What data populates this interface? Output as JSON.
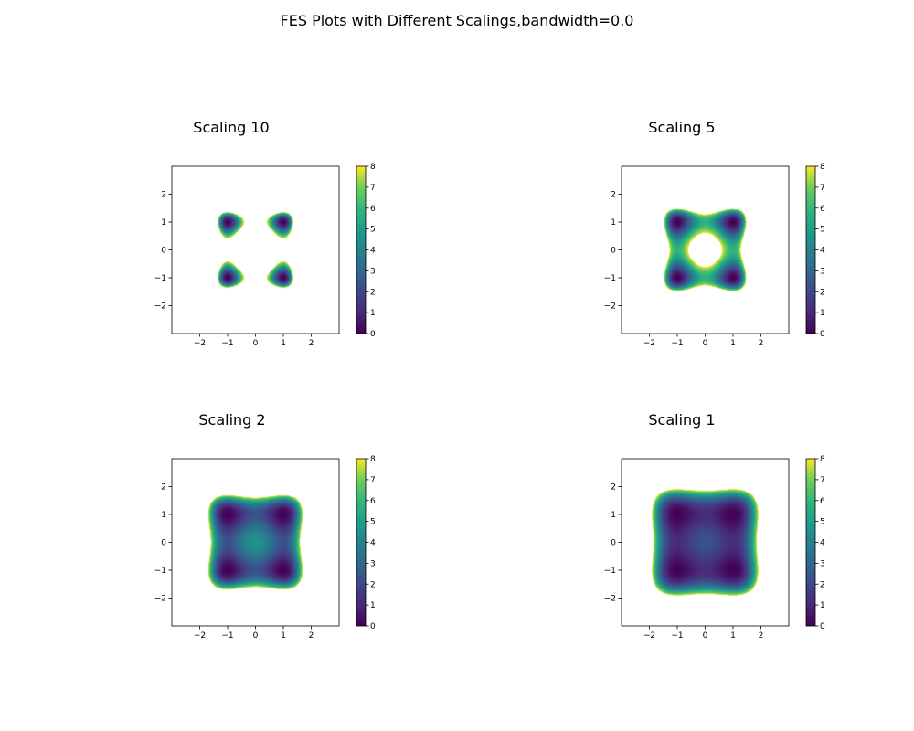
{
  "figure": {
    "title": "FES Plots with Different Scalings,bandwidth=0.0"
  },
  "chart_data": [
    {
      "type": "heatmap",
      "title": "Scaling 10",
      "scaling": 10,
      "colormap": "viridis",
      "xlim": [
        -3,
        3
      ],
      "ylim": [
        -3,
        3
      ],
      "xticks": [
        "-2",
        "-1",
        "0",
        "1",
        "2"
      ],
      "yticks": [
        "-2",
        "-1",
        "0",
        "1",
        "2"
      ],
      "colorbar": {
        "min": 0,
        "max": 8,
        "ticks": [
          "0",
          "1",
          "2",
          "3",
          "4",
          "5",
          "6",
          "7",
          "8"
        ]
      },
      "minima": [
        [
          -1,
          1
        ],
        [
          1,
          1
        ],
        [
          -1,
          -1
        ],
        [
          1,
          -1
        ]
      ],
      "grid": false
    },
    {
      "type": "heatmap",
      "title": "Scaling 5",
      "scaling": 5,
      "colormap": "viridis",
      "xlim": [
        -3,
        3
      ],
      "ylim": [
        -3,
        3
      ],
      "xticks": [
        "-2",
        "-1",
        "0",
        "1",
        "2"
      ],
      "yticks": [
        "-2",
        "-1",
        "0",
        "1",
        "2"
      ],
      "colorbar": {
        "min": 0,
        "max": 8,
        "ticks": [
          "0",
          "1",
          "2",
          "3",
          "4",
          "5",
          "6",
          "7",
          "8"
        ]
      },
      "minima": [
        [
          -1,
          1
        ],
        [
          1,
          1
        ],
        [
          -1,
          -1
        ],
        [
          1,
          -1
        ]
      ],
      "grid": false
    },
    {
      "type": "heatmap",
      "title": "Scaling 2",
      "scaling": 2,
      "colormap": "viridis",
      "xlim": [
        -3,
        3
      ],
      "ylim": [
        -3,
        3
      ],
      "xticks": [
        "-2",
        "-1",
        "0",
        "1",
        "2"
      ],
      "yticks": [
        "-2",
        "-1",
        "0",
        "1",
        "2"
      ],
      "colorbar": {
        "min": 0,
        "max": 8,
        "ticks": [
          "0",
          "1",
          "2",
          "3",
          "4",
          "5",
          "6",
          "7",
          "8"
        ]
      },
      "minima": [
        [
          -1,
          1
        ],
        [
          1,
          1
        ],
        [
          -1,
          -1
        ],
        [
          1,
          -1
        ]
      ],
      "grid": false
    },
    {
      "type": "heatmap",
      "title": "Scaling 1",
      "scaling": 1,
      "colormap": "viridis",
      "xlim": [
        -3,
        3
      ],
      "ylim": [
        -3,
        3
      ],
      "xticks": [
        "-2",
        "-1",
        "0",
        "1",
        "2"
      ],
      "yticks": [
        "-2",
        "-1",
        "0",
        "1",
        "2"
      ],
      "colorbar": {
        "min": 0,
        "max": 8,
        "ticks": [
          "0",
          "1",
          "2",
          "3",
          "4",
          "5",
          "6",
          "7",
          "8"
        ]
      },
      "minima": [
        [
          -1,
          1
        ],
        [
          1,
          1
        ],
        [
          -1,
          -1
        ],
        [
          1,
          -1
        ]
      ],
      "grid": false
    }
  ]
}
